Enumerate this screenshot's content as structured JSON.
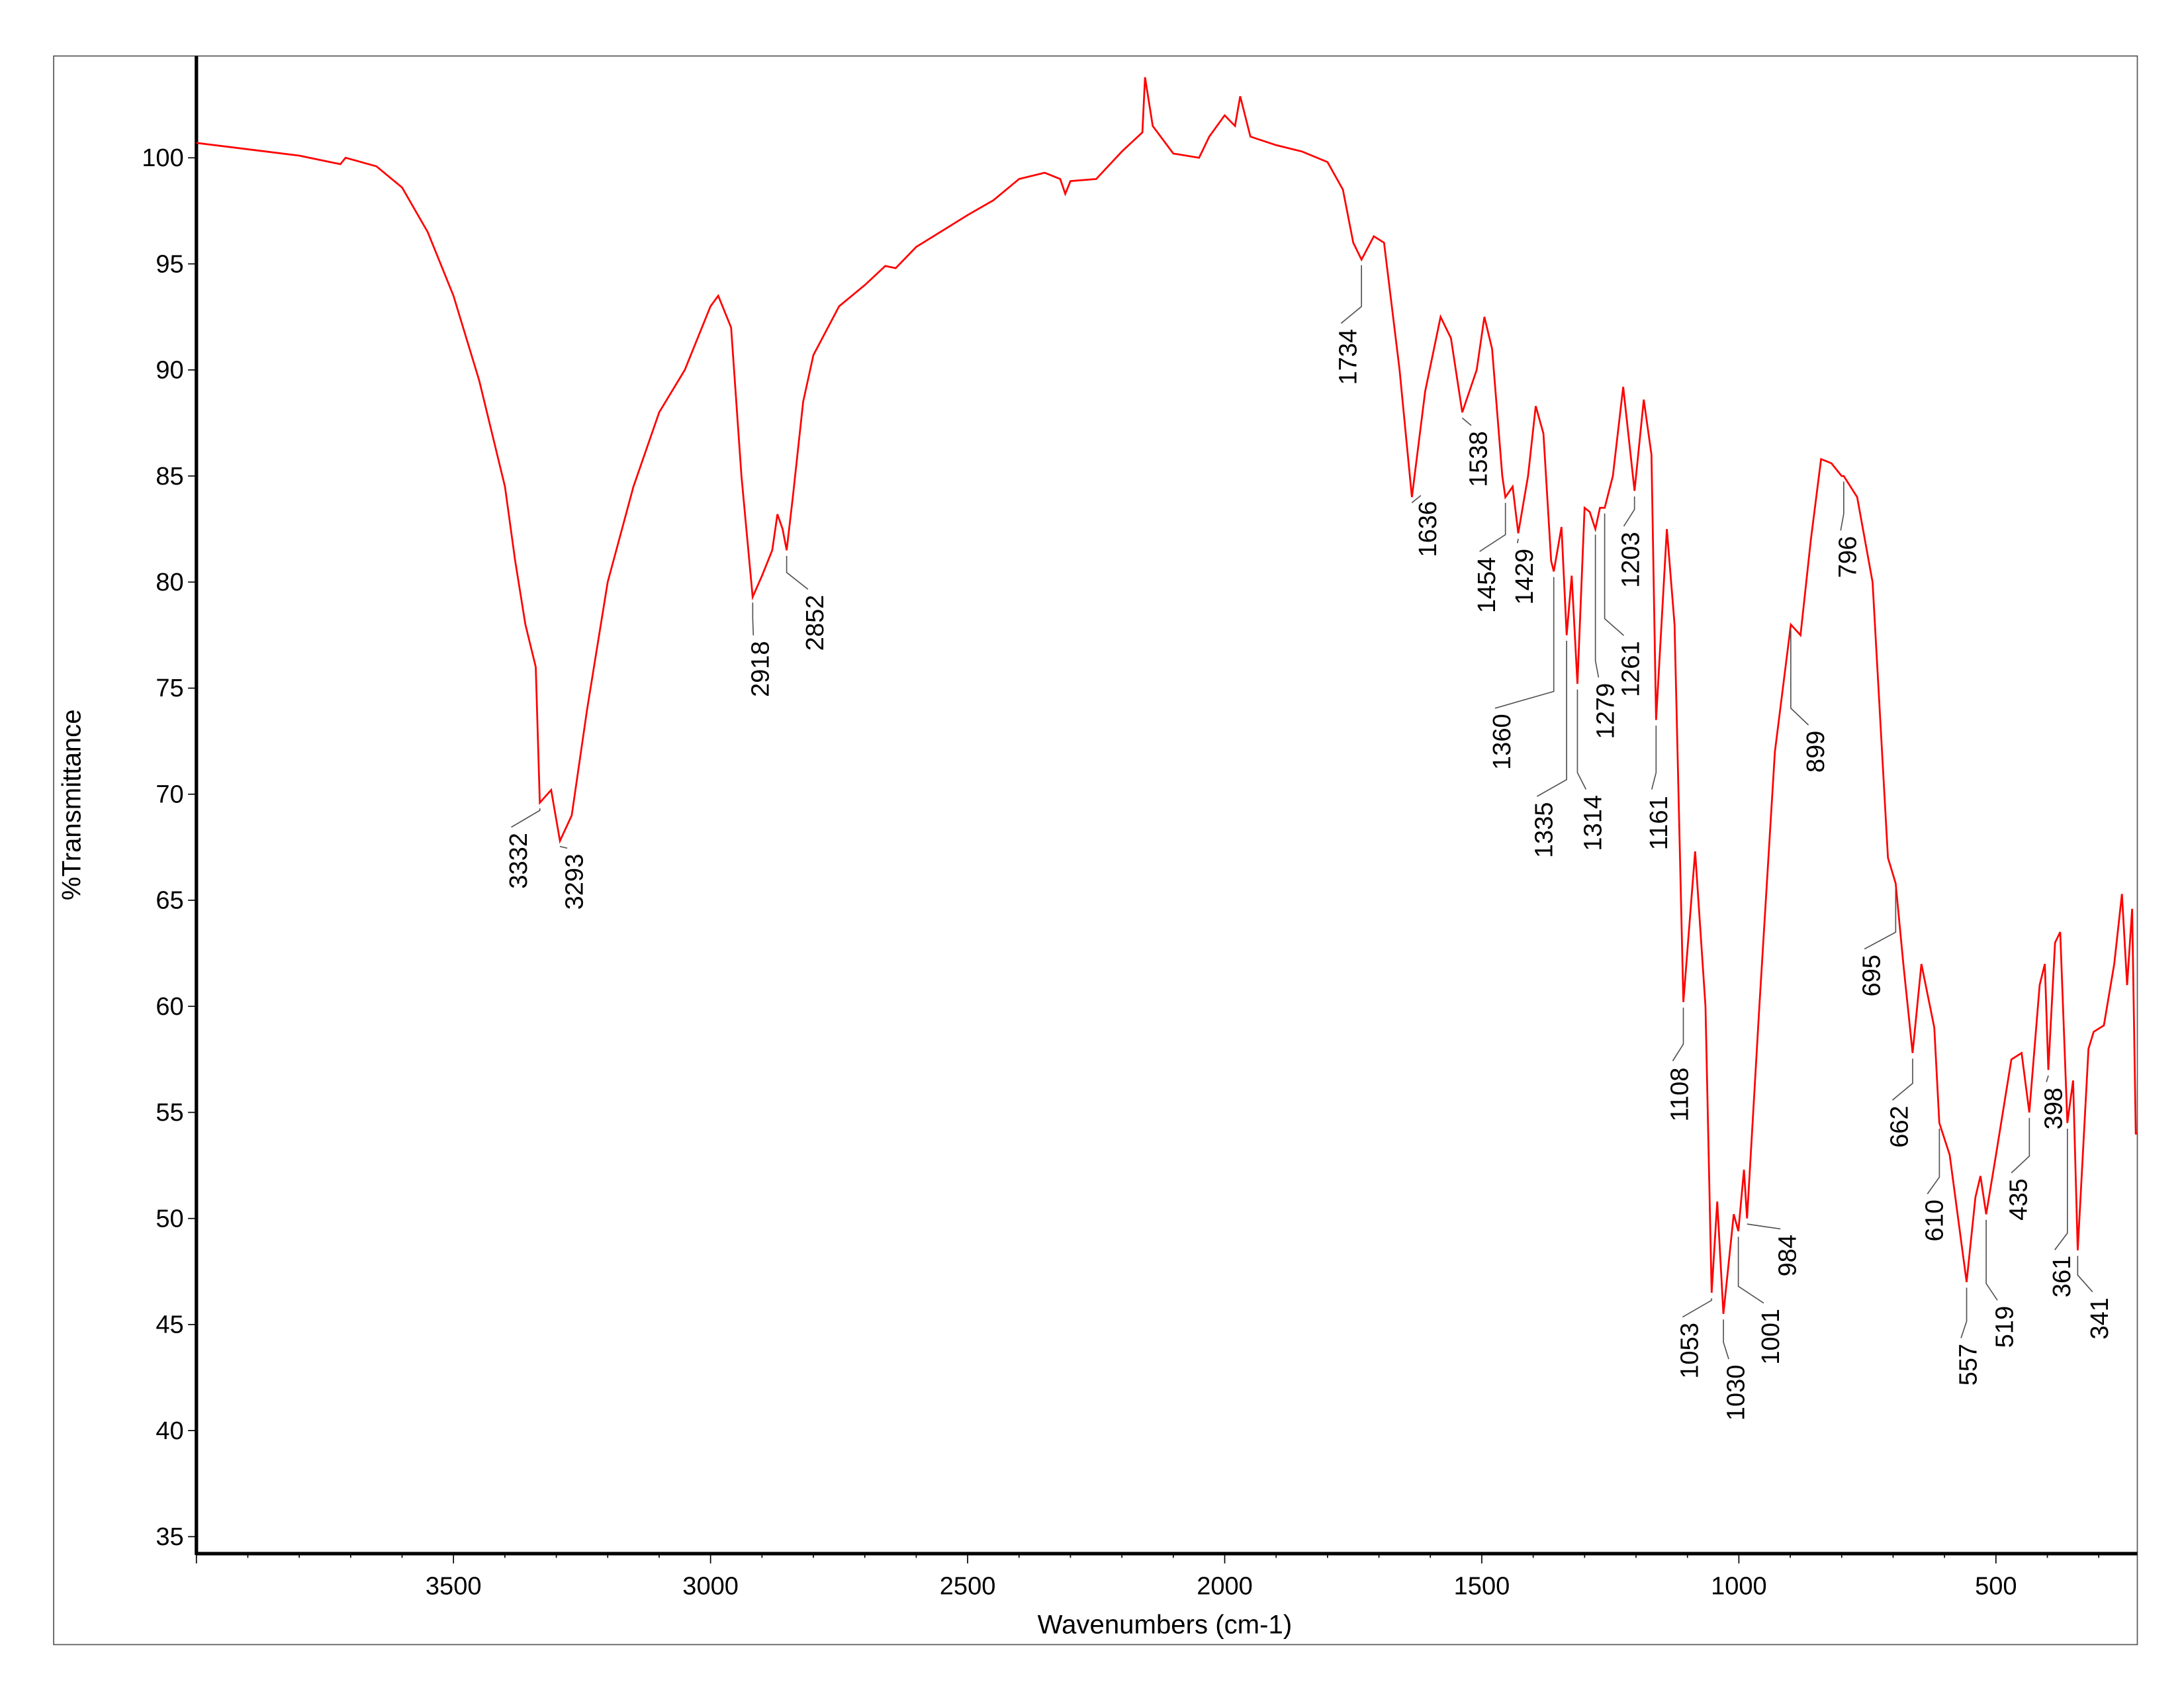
{
  "chart_data": {
    "type": "line",
    "title": "",
    "xlabel": "Wavenumbers (cm-1)",
    "ylabel": "%Transmittance",
    "xlim": [
      4000,
      225
    ],
    "ylim": [
      34.2,
      104.8
    ],
    "x_reversed": true,
    "grid": false,
    "x_ticks": [
      3500,
      3000,
      2500,
      2000,
      1500,
      1000,
      500
    ],
    "y_ticks": [
      35,
      40,
      45,
      50,
      55,
      60,
      65,
      70,
      75,
      80,
      85,
      90,
      95,
      100
    ],
    "series_color": "#ff0000",
    "series": [
      {
        "x": [
          4000,
          3800,
          3720,
          3710,
          3650,
          3600,
          3550,
          3500,
          3450,
          3400,
          3380,
          3360,
          3340,
          3332,
          3310,
          3293,
          3270,
          3240,
          3200,
          3150,
          3100,
          3050,
          3000,
          2985,
          2960,
          2940,
          2918,
          2900,
          2880,
          2870,
          2860,
          2852,
          2840,
          2820,
          2800,
          2750,
          2700,
          2660,
          2640,
          2600,
          2500,
          2450,
          2400,
          2350,
          2320,
          2310,
          2300,
          2250,
          2200,
          2160,
          2155,
          2140,
          2100,
          2050,
          2030,
          2000,
          1980,
          1970,
          1950,
          1900,
          1850,
          1800,
          1770,
          1750,
          1734,
          1710,
          1690,
          1660,
          1636,
          1610,
          1580,
          1560,
          1538,
          1510,
          1495,
          1480,
          1460,
          1454,
          1440,
          1429,
          1410,
          1395,
          1380,
          1365,
          1360,
          1345,
          1335,
          1325,
          1314,
          1300,
          1290,
          1279,
          1270,
          1261,
          1245,
          1225,
          1203,
          1185,
          1170,
          1161,
          1140,
          1125,
          1108,
          1085,
          1065,
          1053,
          1042,
          1030,
          1010,
          1001,
          990,
          984,
          960,
          930,
          899,
          880,
          860,
          840,
          820,
          800,
          796,
          770,
          740,
          710,
          695,
          680,
          662,
          645,
          620,
          610,
          590,
          557,
          540,
          530,
          519,
          500,
          470,
          450,
          435,
          415,
          405,
          398,
          385,
          375,
          361,
          350,
          341,
          320,
          310,
          290,
          270,
          255,
          245,
          235,
          228,
          225
        ],
        "y": [
          100.7,
          100.1,
          99.7,
          100.0,
          99.6,
          98.6,
          96.5,
          93.5,
          89.5,
          84.5,
          81,
          78,
          76,
          69.6,
          70.2,
          67.8,
          69,
          74,
          80,
          84.5,
          88,
          90,
          93,
          93.5,
          92,
          85,
          79.3,
          80.3,
          81.5,
          83.2,
          82.5,
          81.5,
          84,
          88.5,
          90.7,
          93,
          94,
          94.9,
          94.8,
          95.8,
          97.3,
          98.0,
          99.0,
          99.3,
          99.0,
          98.3,
          98.9,
          99.0,
          100.3,
          101.2,
          103.8,
          101.5,
          100.2,
          100.0,
          101,
          102.0,
          101.5,
          102.9,
          101,
          100.6,
          100.3,
          99.8,
          98.5,
          96,
          95.2,
          96.3,
          96,
          90,
          84.0,
          89,
          92.5,
          91.5,
          88.0,
          90,
          92.5,
          91,
          85,
          84,
          84.5,
          82.3,
          85,
          88.3,
          87,
          81,
          80.5,
          82.6,
          77.5,
          80.3,
          75.2,
          83.5,
          83.3,
          82.5,
          83.5,
          83.5,
          85,
          89.2,
          84.3,
          88.6,
          86,
          73.5,
          82.5,
          78,
          60.2,
          67.3,
          60,
          46.5,
          50.8,
          45.5,
          50.2,
          49.4,
          52.3,
          50,
          60,
          72,
          78,
          77.5,
          82,
          85.8,
          85.6,
          85,
          85,
          84,
          80,
          67,
          65.8,
          62,
          57.8,
          62,
          59,
          54.5,
          53,
          47,
          51,
          52,
          50.2,
          53,
          57.5,
          57.8,
          55,
          61,
          62,
          57,
          63,
          63.5,
          54.5,
          56.5,
          48.5,
          58,
          58.8,
          59.1,
          62,
          65.3,
          61,
          64.6,
          54,
          54
        ]
      }
    ],
    "peak_labels": [
      "3332",
      "3293",
      "2918",
      "2852",
      "1734",
      "1636",
      "1538",
      "1454",
      "1429",
      "1360",
      "1335",
      "1314",
      "1279",
      "1261",
      "1203",
      "1161",
      "1108",
      "1053",
      "1030",
      "1001",
      "984",
      "899",
      "796",
      "695",
      "662",
      "610",
      "557",
      "519",
      "435",
      "398",
      "361",
      "341"
    ]
  }
}
